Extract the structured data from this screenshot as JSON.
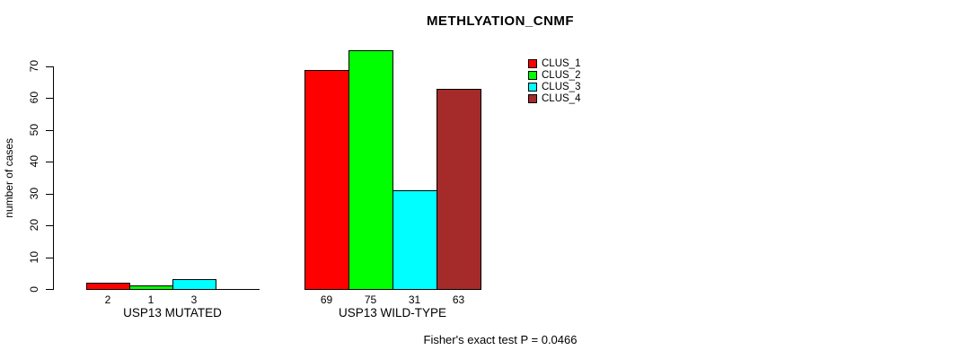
{
  "header": {
    "title": "METHLYATION_CNMF"
  },
  "colors": {
    "background": "#FFFFFF",
    "axis": "#000000",
    "bar_border": "#000000",
    "clus_1": "#FF0000",
    "clus_2": "#00FF00",
    "clus_3": "#00FFFF",
    "clus_4": "#A52A2A"
  },
  "chart_data": {
    "type": "bar",
    "title": "METHLYATION_CNMF",
    "xlabel": "",
    "ylabel": "number of cases",
    "categories": [
      "USP13 MUTATED",
      "USP13 WILD-TYPE"
    ],
    "series": [
      {
        "name": "CLUS_1",
        "color": "#FF0000",
        "values": [
          2,
          69
        ]
      },
      {
        "name": "CLUS_2",
        "color": "#00FF00",
        "values": [
          1,
          75
        ]
      },
      {
        "name": "CLUS_3",
        "color": "#00FFFF",
        "values": [
          3,
          31
        ]
      },
      {
        "name": "CLUS_4",
        "color": "#A52A2A",
        "values": [
          0,
          63
        ]
      }
    ],
    "bar_value_labels": [
      [
        "2",
        "1",
        "3",
        ""
      ],
      [
        "69",
        "75",
        "31",
        "63"
      ]
    ],
    "yticks": [
      0,
      10,
      20,
      30,
      40,
      50,
      60,
      70
    ],
    "ylim": [
      0,
      75.6
    ],
    "grid": false,
    "legend_position": "top-right",
    "legend_entries": [
      "CLUS_1",
      "CLUS_2",
      "CLUS_3",
      "CLUS_4"
    ],
    "annotation": "Fisher's exact test P = 0.0466"
  }
}
